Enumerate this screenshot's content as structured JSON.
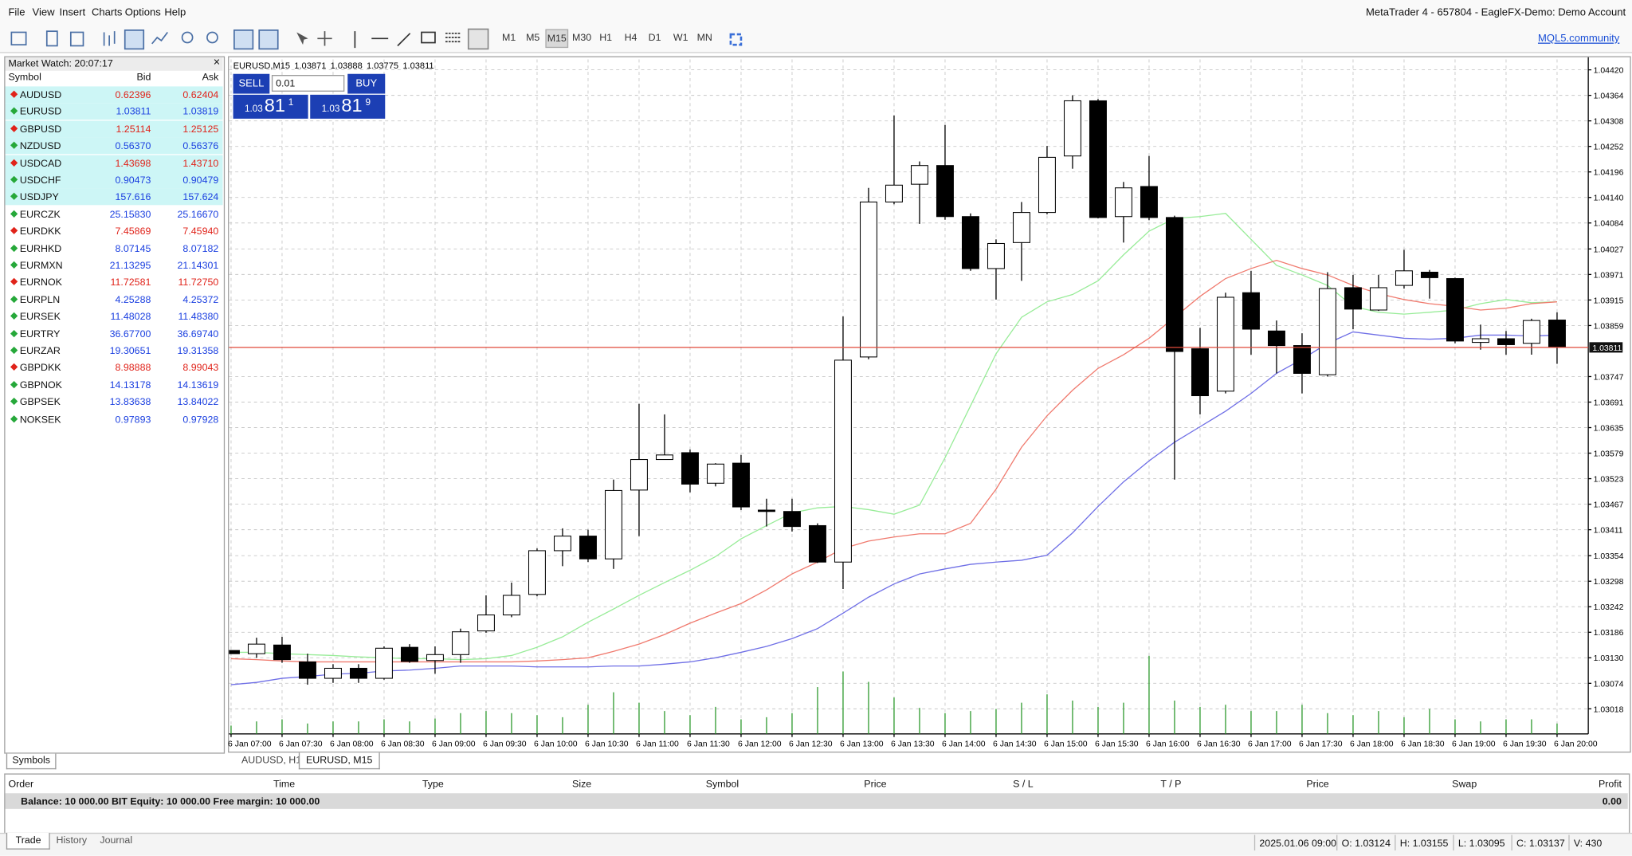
{
  "menu_bar": {
    "items": [
      "File",
      "View",
      "Insert",
      "Charts",
      "Options",
      "Help"
    ],
    "app_title": "MetaTrader 4 - 657804 - EagleFX-Demo: Demo Account"
  },
  "toolbar": {
    "timeframes": [
      "M1",
      "M5",
      "M15",
      "M30",
      "H1",
      "H4",
      "D1",
      "W1",
      "MN"
    ],
    "active_timeframe": 2,
    "link": "MQL5.community"
  },
  "market_watch": {
    "title": "Market Watch: 20:07:17",
    "columns": [
      "Symbol",
      "Bid",
      "Ask"
    ],
    "rows": [
      {
        "symbol": "AUDUSD",
        "bid": "0.62396",
        "ask": "0.62404",
        "up": false,
        "highlighted": true
      },
      {
        "symbol": "EURUSD",
        "bid": "1.03811",
        "ask": "1.03819",
        "up": true,
        "highlighted": true
      },
      {
        "symbol": "GBPUSD",
        "bid": "1.25114",
        "ask": "1.25125",
        "up": false,
        "highlighted": true
      },
      {
        "symbol": "NZDUSD",
        "bid": "0.56370",
        "ask": "0.56376",
        "up": true,
        "highlighted": true
      },
      {
        "symbol": "USDCAD",
        "bid": "1.43698",
        "ask": "1.43710",
        "up": false,
        "highlighted": true
      },
      {
        "symbol": "USDCHF",
        "bid": "0.90473",
        "ask": "0.90479",
        "up": true,
        "highlighted": true
      },
      {
        "symbol": "USDJPY",
        "bid": "157.616",
        "ask": "157.624",
        "up": true,
        "highlighted": true
      },
      {
        "symbol": "EURCZK",
        "bid": "25.15830",
        "ask": "25.16670",
        "up": true,
        "highlighted": false
      },
      {
        "symbol": "EURDKK",
        "bid": "7.45869",
        "ask": "7.45940",
        "up": false,
        "highlighted": false
      },
      {
        "symbol": "EURHKD",
        "bid": "8.07145",
        "ask": "8.07182",
        "up": true,
        "highlighted": false
      },
      {
        "symbol": "EURMXN",
        "bid": "21.13295",
        "ask": "21.14301",
        "up": true,
        "highlighted": false
      },
      {
        "symbol": "EURNOK",
        "bid": "11.72581",
        "ask": "11.72750",
        "up": false,
        "highlighted": false
      },
      {
        "symbol": "EURPLN",
        "bid": "4.25288",
        "ask": "4.25372",
        "up": true,
        "highlighted": false
      },
      {
        "symbol": "EURSEK",
        "bid": "11.48028",
        "ask": "11.48380",
        "up": true,
        "highlighted": false
      },
      {
        "symbol": "EURTRY",
        "bid": "36.67700",
        "ask": "36.69740",
        "up": true,
        "highlighted": false
      },
      {
        "symbol": "EURZAR",
        "bid": "19.30651",
        "ask": "19.31358",
        "up": true,
        "highlighted": false
      },
      {
        "symbol": "GBPDKK",
        "bid": "8.98888",
        "ask": "8.99043",
        "up": false,
        "highlighted": false
      },
      {
        "symbol": "GBPNOK",
        "bid": "14.13178",
        "ask": "14.13619",
        "up": true,
        "highlighted": false
      },
      {
        "symbol": "GBPSEK",
        "bid": "13.83638",
        "ask": "13.84022",
        "up": true,
        "highlighted": false
      },
      {
        "symbol": "NOKSEK",
        "bid": "0.97893",
        "ask": "0.97928",
        "up": true,
        "highlighted": false
      }
    ],
    "tab": "Symbols"
  },
  "trade_panel": {
    "sell": "SELL",
    "lot": "0.01",
    "buy": "BUY",
    "sell_price": [
      "1.03",
      "81",
      "1"
    ],
    "buy_price": [
      "1.03",
      "81",
      "9"
    ]
  },
  "chart_tabs": {
    "tabs": [
      "AUDUSD, H1",
      "EURUSD, M15"
    ],
    "active": 1
  },
  "chart_data": {
    "type": "candlestick",
    "title": "EURUSD,M15",
    "categories": [
      "6 Jan 07:00",
      null,
      "6 Jan 07:30",
      null,
      "6 Jan 08:00",
      null,
      "6 Jan 08:30",
      null,
      "6 Jan 09:00",
      null,
      "6 Jan 09:30",
      null,
      "6 Jan 10:00",
      null,
      "6 Jan 10:30",
      null,
      "6 Jan 11:00",
      null,
      "6 Jan 11:30",
      null,
      "6 Jan 12:00",
      null,
      "6 Jan 12:30",
      null,
      "6 Jan 13:00",
      null,
      "6 Jan 13:30",
      null,
      "6 Jan 14:00",
      null,
      "6 Jan 14:30",
      null,
      "6 Jan 15:00",
      null,
      "6 Jan 15:30",
      null,
      "6 Jan 16:00",
      null,
      "6 Jan 16:30",
      null,
      "6 Jan 17:00",
      null,
      "6 Jan 17:30",
      null,
      "6 Jan 18:00",
      null,
      "6 Jan 18:30",
      null,
      "6 Jan 19:00",
      null,
      "6 Jan 19:30",
      null,
      "6 Jan 20:00"
    ],
    "open": [
      1.03146,
      1.03139,
      1.03158,
      1.03121,
      1.03085,
      1.03107,
      1.03085,
      1.03153,
      1.03124,
      1.03137,
      1.03189,
      1.03224,
      1.03269,
      1.03365,
      1.03397,
      1.03347,
      1.03498,
      1.03565,
      1.0358,
      1.03513,
      1.03557,
      1.03454,
      1.03451,
      1.0342,
      1.0334,
      1.0379,
      1.0413,
      1.04169,
      1.0421,
      1.04098,
      1.03984,
      1.04041,
      1.04107,
      1.04231,
      1.04352,
      1.04098,
      1.04164,
      1.04096,
      1.03808,
      1.03715,
      1.03931,
      1.03847,
      1.03815,
      1.03751,
      1.03942,
      1.03893,
      1.03947,
      1.03976,
      1.03962,
      1.03822,
      1.0383,
      1.0382,
      1.03871
    ],
    "high": [
      1.03146,
      1.03174,
      1.03176,
      1.03139,
      1.03116,
      1.03116,
      1.03155,
      1.0316,
      1.03155,
      1.03194,
      1.03267,
      1.03295,
      1.0337,
      1.03414,
      1.03411,
      1.03521,
      1.03687,
      1.03664,
      1.03587,
      1.03557,
      1.03575,
      1.03479,
      1.03479,
      1.03425,
      1.03879,
      1.04161,
      1.0432,
      1.04219,
      1.04299,
      1.04105,
      1.04048,
      1.0413,
      1.04253,
      1.04364,
      1.04356,
      1.04174,
      1.04231,
      1.041,
      1.03854,
      1.03931,
      1.03979,
      1.0387,
      1.03842,
      1.03976,
      1.0397,
      1.0397,
      1.04025,
      1.03981,
      1.03964,
      1.03861,
      1.03847,
      1.03874,
      1.03888
    ],
    "low": [
      1.03139,
      1.0313,
      1.03119,
      1.03071,
      1.03075,
      1.03075,
      1.03082,
      1.03119,
      1.03095,
      1.03119,
      1.03185,
      1.03219,
      1.03265,
      1.03331,
      1.0334,
      1.03325,
      1.03397,
      1.03565,
      1.03493,
      1.03506,
      1.03454,
      1.03418,
      1.03407,
      1.03338,
      1.03281,
      1.03785,
      1.04125,
      1.04082,
      1.04091,
      1.03979,
      1.03916,
      1.03957,
      1.04103,
      1.04203,
      1.04094,
      1.04041,
      1.0409,
      1.03521,
      1.03664,
      1.0371,
      1.03795,
      1.03754,
      1.0371,
      1.03747,
      1.03851,
      1.03891,
      1.0394,
      1.03918,
      1.0382,
      1.03806,
      1.03795,
      1.03795,
      1.03775
    ],
    "close": [
      1.03139,
      1.0316,
      1.03126,
      1.03085,
      1.03107,
      1.03085,
      1.03151,
      1.03122,
      1.03137,
      1.03187,
      1.03224,
      1.03267,
      1.03365,
      1.03397,
      1.03347,
      1.03497,
      1.03565,
      1.03575,
      1.03511,
      1.03555,
      1.03461,
      1.03451,
      1.03418,
      1.0334,
      1.03783,
      1.0413,
      1.04167,
      1.0421,
      1.04098,
      1.03984,
      1.04039,
      1.04107,
      1.04228,
      1.04352,
      1.04096,
      1.04161,
      1.04096,
      1.03802,
      1.03705,
      1.03921,
      1.03851,
      1.03815,
      1.03754,
      1.0394,
      1.03895,
      1.03942,
      1.03979,
      1.03964,
      1.03825,
      1.0383,
      1.03817,
      1.0387,
      1.03811
    ],
    "volume": [
      232,
      348,
      406,
      290,
      348,
      348,
      406,
      348,
      430,
      580,
      638,
      580,
      522,
      464,
      812,
      1160,
      870,
      638,
      522,
      754,
      406,
      464,
      580,
      1305,
      1740,
      1450,
      1015,
      725,
      580,
      638,
      696,
      870,
      1102,
      928,
      754,
      870,
      2175,
      928,
      754,
      812,
      638,
      638,
      812,
      580,
      522,
      638,
      464,
      696,
      406,
      348,
      406,
      406,
      290
    ],
    "lines": [
      {
        "color": "#98ec98",
        "values": [
          1.03142,
          1.03142,
          1.03139,
          1.03137,
          1.03135,
          1.03132,
          1.0313,
          1.03128,
          1.03128,
          1.03126,
          1.03128,
          1.03135,
          1.03153,
          1.03176,
          1.03208,
          1.03237,
          1.03267,
          1.03295,
          1.03322,
          1.03352,
          1.03391,
          1.0342,
          1.03448,
          1.03459,
          1.03462,
          1.03455,
          1.03445,
          1.03465,
          1.03569,
          1.03683,
          1.03797,
          1.03877,
          1.03911,
          1.03927,
          1.03957,
          1.04014,
          1.04066,
          1.04094,
          1.04098,
          1.04105,
          1.04048,
          1.03991,
          1.0397,
          1.03947,
          1.03901,
          1.03888,
          1.03884,
          1.03888,
          1.03893,
          1.03907,
          1.03916,
          1.03909,
          1.03911
        ]
      },
      {
        "color": "#f07a6e",
        "values": [
          1.03128,
          1.03126,
          1.03123,
          1.03121,
          1.03121,
          1.03121,
          1.03121,
          1.03121,
          1.03121,
          1.03121,
          1.03121,
          1.03121,
          1.03123,
          1.03126,
          1.0313,
          1.03144,
          1.0316,
          1.03181,
          1.03206,
          1.03228,
          1.03249,
          1.03279,
          1.03314,
          1.0334,
          1.0337,
          1.03386,
          1.03395,
          1.03402,
          1.03402,
          1.03425,
          1.035,
          1.03592,
          1.03661,
          1.03717,
          1.03765,
          1.03795,
          1.03831,
          1.03877,
          1.03923,
          1.03962,
          1.03984,
          1.04002,
          1.03984,
          1.0397,
          1.03947,
          1.03929,
          1.03916,
          1.03907,
          1.03901,
          1.03893,
          1.03897,
          1.03907,
          1.03911
        ]
      },
      {
        "color": "#6f6fe6",
        "values": [
          1.03071,
          1.03076,
          1.03085,
          1.03089,
          1.03094,
          1.03096,
          1.03101,
          1.03103,
          1.03107,
          1.03112,
          1.03112,
          1.03112,
          1.0311,
          1.0311,
          1.0311,
          1.03112,
          1.03112,
          1.03116,
          1.03121,
          1.0313,
          1.03142,
          1.03155,
          1.03172,
          1.03194,
          1.03228,
          1.03263,
          1.03292,
          1.03314,
          1.03325,
          1.03335,
          1.0334,
          1.03344,
          1.03355,
          1.03404,
          1.03462,
          1.03516,
          1.03562,
          1.03603,
          1.03637,
          1.03671,
          1.0371,
          1.03754,
          1.03785,
          1.0382,
          1.03845,
          1.03838,
          1.03831,
          1.03829,
          1.03831,
          1.03838,
          1.03838,
          1.03836,
          1.03838
        ]
      }
    ],
    "up_color": "#ffffff",
    "down_color": "#000000",
    "volume_color": "#2f9a2f",
    "price_line_color": "#e04a3a",
    "ylim": [
      1.02963,
      1.04443
    ],
    "yticks": [
      {
        "value": 1.0442,
        "label": "1.04420"
      },
      1.04364,
      1.04308,
      1.04252,
      1.04196,
      {
        "value": 1.0414,
        "label": "1.04140"
      },
      1.04084,
      1.04027,
      1.03971,
      1.03915,
      1.03859,
      1.03747,
      1.03691,
      1.03635,
      1.03579,
      1.03523,
      1.03467,
      1.03411,
      1.03354,
      1.03298,
      1.03242,
      1.03186,
      {
        "value": 1.0313,
        "label": "1.03130"
      },
      1.03074,
      1.03018
    ],
    "grid": true
  },
  "terminal": {
    "columns": [
      "Order",
      "Time",
      "Type",
      "Size",
      "Symbol",
      "Price",
      "S / L",
      "T / P",
      "Price",
      "Swap",
      "Profit"
    ],
    "balance": "Balance: 10 000.00 BIT  Equity: 10 000.00  Free margin: 10 000.00",
    "profit": "0.00",
    "tabs": [
      "Trade",
      "History",
      "Journal"
    ],
    "active_tab": 0
  },
  "status_bar": [
    "2025.01.06 09:00",
    "O: 1.03124",
    "H: 1.03155",
    "L: 1.03095",
    "C: 1.03137",
    "V: 430"
  ]
}
